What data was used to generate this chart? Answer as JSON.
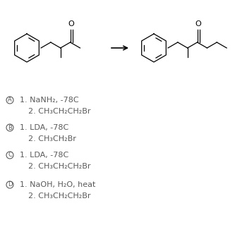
{
  "bg_color": "#ffffff",
  "options": [
    {
      "letter": "A",
      "line1": "1. NaNH₂, -78C",
      "line2": "2. CH₃CH₂CH₂Br"
    },
    {
      "letter": "B",
      "line1": "1. LDA, -78C",
      "line2": "2. CH₃CH₂Br"
    },
    {
      "letter": "C",
      "line1": "1. LDA, -78C",
      "line2": "2. CH₃CH₂CH₂Br"
    },
    {
      "letter": "D",
      "line1": "1. NaOH, H₂O, heat",
      "line2": "2. CH₃CH₂CH₂Br"
    }
  ],
  "text_color": "#5a5a5a",
  "font_size": 8.0,
  "figsize": [
    3.5,
    3.29
  ],
  "dpi": 100,
  "mol_lw": 0.9,
  "mol_color": "#000000"
}
